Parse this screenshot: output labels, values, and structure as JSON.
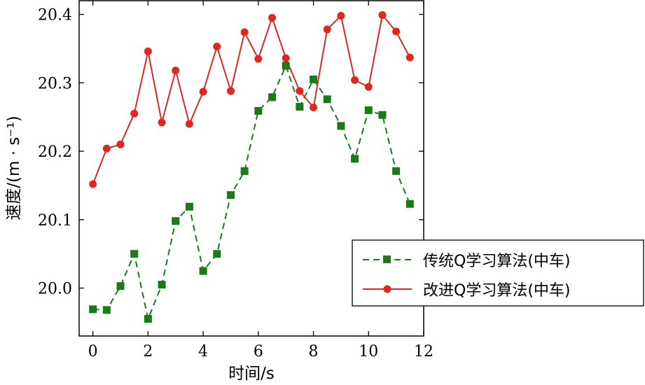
{
  "chart_data": {
    "type": "line",
    "title": "",
    "xlabel": "时间/s",
    "ylabel": "速度/(m · s⁻¹)",
    "xlim": [
      -0.5,
      12
    ],
    "ylim": [
      19.93,
      20.42
    ],
    "xticks": [
      0,
      2,
      4,
      6,
      8,
      10,
      12
    ],
    "xtick_labels": [
      "0",
      "2",
      "4",
      "6",
      "8",
      "10",
      "12"
    ],
    "yticks": [
      20.0,
      20.1,
      20.2,
      20.3,
      20.4
    ],
    "ytick_labels": [
      "20.0",
      "20.1",
      "20.2",
      "20.3",
      "20.4"
    ],
    "grid": false,
    "legend_position": "lower-right",
    "series": [
      {
        "name": "传统Q学习算法(中车)",
        "color": "#1a7a1a",
        "marker": "square",
        "linestyle": "dashed",
        "x": [
          0,
          0.5,
          1,
          1.5,
          2,
          2.5,
          3,
          3.5,
          4,
          4.5,
          5,
          5.5,
          6,
          6.5,
          7,
          7.5,
          8,
          8.5,
          9,
          9.5,
          10,
          10.5,
          11,
          11.5
        ],
        "values": [
          19.969,
          19.968,
          20.003,
          20.05,
          19.955,
          20.005,
          20.098,
          20.119,
          20.025,
          20.05,
          20.136,
          20.171,
          20.259,
          20.279,
          20.325,
          20.265,
          20.305,
          20.276,
          20.237,
          20.189,
          20.26,
          20.253,
          20.171,
          20.123
        ]
      },
      {
        "name": "改进Q学习算法(中车)",
        "color": "#e0261e",
        "marker": "circle",
        "linestyle": "solid",
        "x": [
          0,
          0.5,
          1,
          1.5,
          2,
          2.5,
          3,
          3.5,
          4,
          4.5,
          5,
          5.5,
          6,
          6.5,
          7,
          7.5,
          8,
          8.5,
          9,
          9.5,
          10,
          10.5,
          11,
          11.5
        ],
        "values": [
          20.152,
          20.204,
          20.21,
          20.255,
          20.346,
          20.242,
          20.318,
          20.24,
          20.287,
          20.353,
          20.288,
          20.374,
          20.335,
          20.395,
          20.336,
          20.288,
          20.264,
          20.378,
          20.398,
          20.304,
          20.294,
          20.399,
          20.375,
          20.337
        ]
      }
    ]
  }
}
